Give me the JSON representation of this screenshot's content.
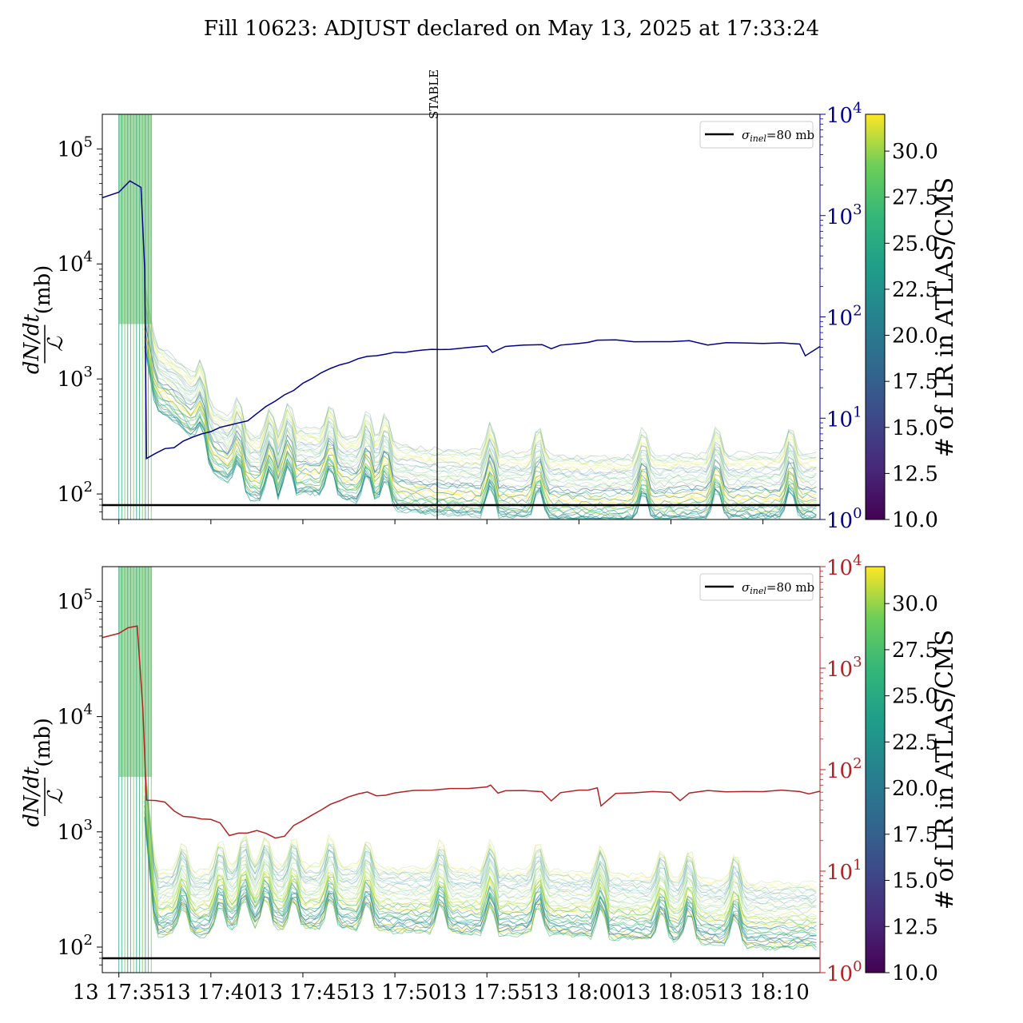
{
  "chart_data": [
    {
      "type": "line",
      "title": "Fill 10623: ADJUST declared on May 13, 2025 at 17:33:24",
      "ylabel_numerator": "dN/dt",
      "ylabel_denominator": "ℒ",
      "ylabel_unit": "(mb)",
      "yscale": "log",
      "ylim": [
        60,
        200000
      ],
      "yticks": [
        {
          "base": "10",
          "exp": "2",
          "value": 100
        },
        {
          "base": "10",
          "exp": "3",
          "value": 1000
        },
        {
          "base": "10",
          "exp": "4",
          "value": 10000
        },
        {
          "base": "10",
          "exp": "5",
          "value": 100000
        }
      ],
      "y2scale": "log",
      "y2lim": [
        1,
        10000
      ],
      "y2ticks": [
        {
          "base": "10",
          "exp": "0",
          "value": 1
        },
        {
          "base": "10",
          "exp": "1",
          "value": 10
        },
        {
          "base": "10",
          "exp": "2",
          "value": 100
        },
        {
          "base": "10",
          "exp": "3",
          "value": 1000
        },
        {
          "base": "10",
          "exp": "4",
          "value": 10000
        }
      ],
      "y2_color": "#00008b",
      "xlim_minutes": [
        34.1,
        73.1
      ],
      "vline": {
        "minute": 52.3,
        "label": "STABLE"
      },
      "hline": {
        "value": 80,
        "legend": "σ_inel=80 mb"
      },
      "legend_placement": "top-right",
      "legend_label_main": "σ",
      "legend_label_sub": "inel",
      "legend_label_rest": "=80 mb",
      "colorbar": {
        "label": "# of LR in ATLAS/CMS",
        "range": [
          10,
          32
        ],
        "ticks": [
          "10.0",
          "12.5",
          "15.0",
          "17.5",
          "20.0",
          "22.5",
          "25.0",
          "27.5",
          "30.0"
        ],
        "colormap": "viridis"
      },
      "series": [
        {
          "role": "right-axis",
          "x": [
            34.1,
            35.0,
            35.6,
            36.2,
            36.4,
            36.5,
            37.0,
            37.5,
            38.0,
            38.5,
            39.0,
            39.5,
            40.0,
            40.5,
            41.0,
            41.5,
            42.0,
            42.5,
            43.0,
            43.5,
            44.0,
            44.5,
            45.0,
            45.5,
            46.0,
            46.5,
            47.0,
            47.5,
            48.0,
            48.5,
            49.0,
            49.5,
            50.0,
            50.5,
            51.0,
            51.5,
            52.0,
            52.5,
            53.0,
            54.0,
            55.0,
            55.3,
            56.0,
            57.0,
            58.0,
            58.5,
            59.0,
            60.0,
            60.5,
            61.0,
            62.0,
            63.0,
            64.0,
            65.0,
            66.0,
            67.0,
            68.0,
            69.0,
            70.0,
            71.0,
            72.0,
            72.3,
            73.1
          ],
          "values": [
            1500,
            1700,
            2200,
            1900,
            300,
            4.0,
            4.5,
            5.0,
            5.2,
            6.0,
            6.5,
            7.0,
            7.5,
            8.0,
            8.5,
            9.0,
            9.5,
            11,
            13,
            15,
            17,
            19,
            22,
            25,
            28,
            31,
            34,
            36,
            38,
            40,
            42,
            43,
            44,
            45,
            46,
            47,
            47.5,
            48,
            48.5,
            49,
            52,
            45,
            51,
            53,
            54,
            48,
            53,
            55,
            57,
            58,
            60,
            56,
            57,
            57.5,
            58,
            53,
            55,
            55,
            55.5,
            56,
            54,
            42,
            52
          ]
        }
      ]
    },
    {
      "type": "line",
      "ylabel_numerator": "dN/dt",
      "ylabel_denominator": "ℒ",
      "ylabel_unit": "(mb)",
      "yscale": "log",
      "ylim": [
        60,
        200000
      ],
      "yticks": [
        {
          "base": "10",
          "exp": "2",
          "value": 100
        },
        {
          "base": "10",
          "exp": "3",
          "value": 1000
        },
        {
          "base": "10",
          "exp": "4",
          "value": 10000
        },
        {
          "base": "10",
          "exp": "5",
          "value": 100000
        }
      ],
      "y2scale": "log",
      "y2lim": [
        1,
        10000
      ],
      "y2ticks": [
        {
          "base": "10",
          "exp": "0",
          "value": 1
        },
        {
          "base": "10",
          "exp": "1",
          "value": 10
        },
        {
          "base": "10",
          "exp": "2",
          "value": 100
        },
        {
          "base": "10",
          "exp": "3",
          "value": 1000
        },
        {
          "base": "10",
          "exp": "4",
          "value": 10000
        }
      ],
      "y2_color": "#b22222",
      "xlim_minutes": [
        34.1,
        73.1
      ],
      "xticks": [
        "13 17:35",
        "13 17:40",
        "13 17:45",
        "13 17:50",
        "13 17:55",
        "13 18:00",
        "13 18:05",
        "13 18:10"
      ],
      "xtick_minutes": [
        35,
        40,
        45,
        50,
        55,
        60,
        65,
        70
      ],
      "hline": {
        "value": 80,
        "legend": "σ_inel=80 mb"
      },
      "legend_placement": "top-right",
      "colorbar": {
        "label": "# of LR in ATLAS/CMS",
        "range": [
          10,
          32
        ],
        "ticks": [
          "10.0",
          "12.5",
          "15.0",
          "17.5",
          "20.0",
          "22.5",
          "25.0",
          "27.5",
          "30.0"
        ],
        "colormap": "viridis"
      },
      "series": [
        {
          "role": "right-axis",
          "x": [
            34.1,
            35.0,
            35.5,
            36.0,
            36.3,
            36.5,
            37.0,
            37.5,
            38.0,
            38.5,
            39.0,
            39.5,
            40.0,
            40.5,
            41.0,
            41.5,
            42.0,
            42.5,
            43.0,
            43.5,
            44.0,
            44.5,
            45.0,
            45.5,
            46.0,
            46.5,
            47.0,
            47.5,
            48.0,
            48.5,
            49.0,
            49.5,
            50.0,
            51.0,
            52.0,
            53.0,
            54.0,
            55.0,
            55.2,
            55.6,
            56.0,
            57.0,
            58.0,
            58.5,
            59.0,
            60.0,
            60.5,
            61.0,
            61.2,
            62.0,
            63.0,
            64.0,
            65.0,
            65.5,
            66.0,
            67.0,
            68.0,
            69.0,
            70.0,
            71.0,
            72.0,
            72.5,
            73.1
          ],
          "values": [
            2000,
            2200,
            2500,
            2600,
            400,
            50,
            50,
            48,
            40,
            35,
            34,
            33,
            32,
            30,
            22,
            24,
            24,
            25,
            24,
            21,
            22,
            28,
            32,
            36,
            40,
            45,
            50,
            55,
            58,
            60,
            55,
            57,
            60,
            62,
            63,
            64,
            65,
            67,
            70,
            58,
            62,
            62,
            60,
            50,
            60,
            62,
            64,
            65,
            44,
            58,
            60,
            62,
            60,
            50,
            60,
            62,
            60,
            60,
            60,
            62,
            60,
            58,
            62
          ]
        }
      ]
    }
  ]
}
